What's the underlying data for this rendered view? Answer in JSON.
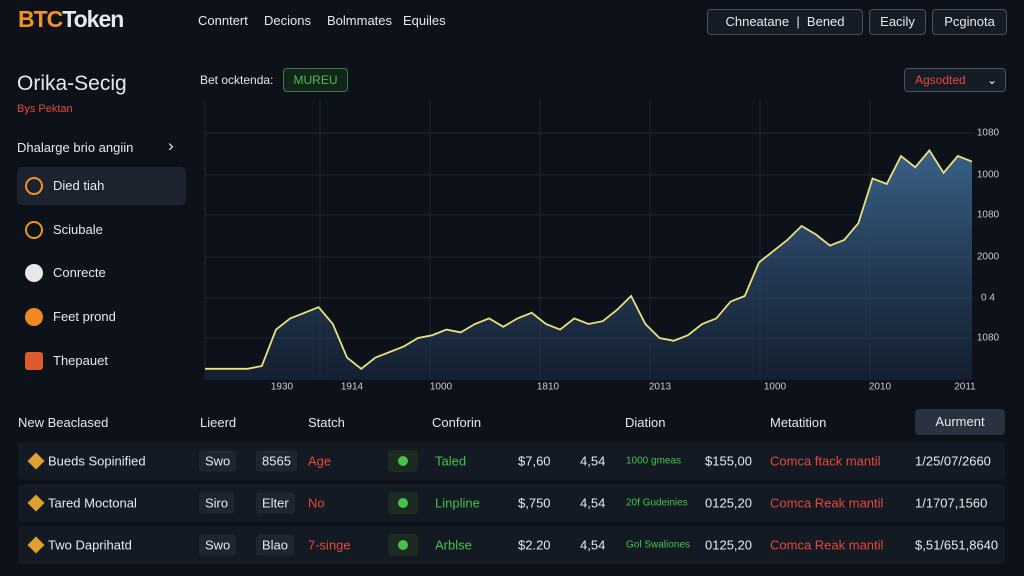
{
  "header": {
    "logo_accent": "BTC",
    "logo_rest": "Token",
    "nav": [
      "Conntert",
      "Decions",
      "Bolmmates",
      "Equiles"
    ],
    "buttons": [
      "Chneatane",
      "Bened",
      "Eacily",
      "Pcginota"
    ]
  },
  "sidebar": {
    "title": "Orika-Secig",
    "subtitle": "Bys Pektan",
    "section": "Dhalarge brio angiin",
    "items": [
      "Died tiah",
      "Sciubale",
      "Conrecte",
      "Feet prond",
      "Thepauet"
    ]
  },
  "chart": {
    "type": "area",
    "label": "Bet ocktenda:",
    "badge": "MUREU",
    "dropdown": "Agsodted",
    "ylim": [
      0,
      100
    ],
    "values": [
      4,
      4,
      4,
      4,
      5,
      18,
      22,
      24,
      26,
      20,
      8,
      4,
      8,
      10,
      12,
      15,
      16,
      18,
      17,
      20,
      22,
      19,
      22,
      24,
      20,
      18,
      22,
      20,
      21,
      25,
      30,
      20,
      15,
      14,
      16,
      20,
      22,
      28,
      30,
      42,
      46,
      50,
      55,
      52,
      48,
      50,
      56,
      72,
      70,
      80,
      76,
      82,
      74,
      80,
      78
    ],
    "y_labels": [
      "1080",
      "1000",
      "1080",
      "2000",
      "0 4",
      "1080"
    ],
    "x_labels": [
      "1930",
      "1914",
      "1000",
      "1810",
      "2013",
      "1000",
      "2010",
      "2011"
    ]
  },
  "table": {
    "headers": [
      "New Beaclased",
      "Lieerd",
      "Statch",
      "Conforin",
      "Diation",
      "Metatition"
    ],
    "button": "Aurment",
    "rows": [
      [
        "Bueds Sopinified",
        "Swo",
        "8565",
        "Age",
        "Taled",
        "$7,60",
        "4,54",
        "1000 gmeas",
        "$155,00",
        "Comca ftack mantil",
        "1/25/07/2660"
      ],
      [
        "Tared Moctonal",
        "Siro",
        "Elter",
        "No",
        "Linpline",
        "$,750",
        "4,54",
        "20f Gudeinies",
        "0125,20",
        "Comca Reak mantil",
        "1/1707,1560"
      ],
      [
        "Two Daprihatd",
        "Swo",
        "Blao",
        "7-singe",
        "Arblse",
        "$2.20",
        "4,54",
        "Gol Swaliones",
        "0125,20",
        "Comca Reak mantil",
        "$,51/651,8640"
      ]
    ]
  }
}
